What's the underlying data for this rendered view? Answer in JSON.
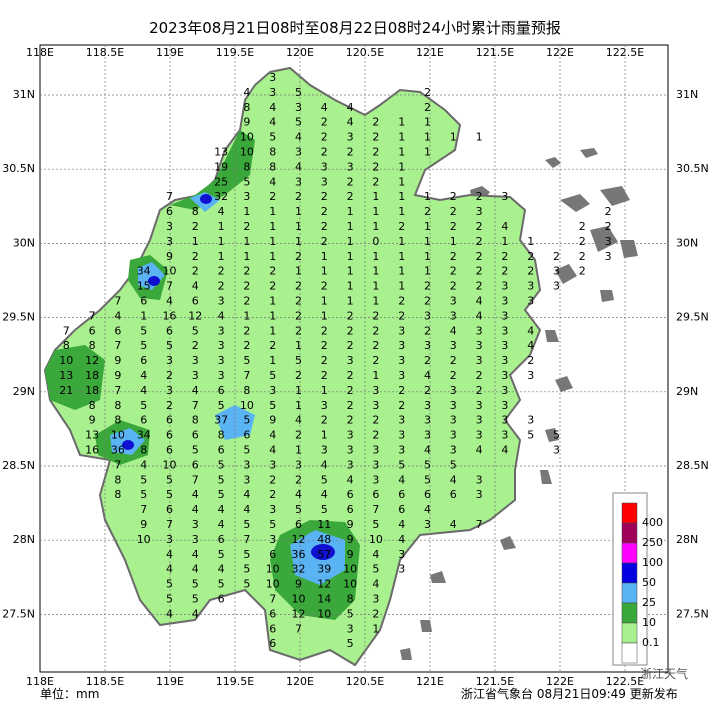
{
  "header": {
    "title": "2023年08月21日08时至08月22日08时24小时累计雨量预报"
  },
  "axes": {
    "lon_labels": [
      "118E",
      "118.5E",
      "119E",
      "119.5E",
      "120E",
      "120.5E",
      "121E",
      "121.5E",
      "122E",
      "122.5E"
    ],
    "lat_labels": [
      "31N",
      "30.5N",
      "30N",
      "29.5N",
      "29N",
      "28.5N",
      "28N",
      "27.5N"
    ]
  },
  "stations": {
    "rows": [
      [
        null,
        null,
        null,
        null,
        null,
        null,
        null,
        null,
        null,
        3
      ],
      [
        null,
        null,
        null,
        null,
        null,
        null,
        null,
        null,
        4,
        3,
        5,
        null,
        null,
        null,
        null,
        2
      ],
      [
        null,
        null,
        null,
        null,
        null,
        null,
        null,
        null,
        8,
        4,
        3,
        4,
        4,
        null,
        null,
        2
      ],
      [
        null,
        null,
        null,
        null,
        null,
        null,
        null,
        null,
        9,
        4,
        5,
        2,
        4,
        2,
        1,
        1
      ],
      [
        null,
        null,
        null,
        null,
        null,
        null,
        null,
        null,
        10,
        5,
        4,
        2,
        3,
        2,
        1,
        1,
        1,
        1
      ],
      [
        null,
        null,
        null,
        null,
        null,
        null,
        null,
        13,
        10,
        8,
        3,
        2,
        2,
        2,
        1,
        1
      ],
      [
        null,
        null,
        null,
        null,
        null,
        null,
        null,
        19,
        8,
        8,
        4,
        3,
        3,
        2,
        1
      ],
      [
        null,
        null,
        null,
        null,
        null,
        null,
        null,
        25,
        5,
        4,
        3,
        3,
        2,
        2,
        1
      ],
      [
        null,
        null,
        null,
        null,
        null,
        7,
        null,
        32,
        3,
        2,
        2,
        2,
        2,
        1,
        1,
        1,
        2,
        2,
        3
      ],
      [
        null,
        null,
        null,
        null,
        null,
        6,
        8,
        4,
        1,
        1,
        1,
        2,
        1,
        1,
        1,
        2,
        2,
        3,
        null,
        null,
        null,
        null,
        2
      ],
      [
        null,
        null,
        null,
        null,
        null,
        3,
        2,
        1,
        2,
        1,
        1,
        2,
        1,
        1,
        2,
        1,
        2,
        2,
        4,
        null,
        null,
        2,
        2
      ],
      [
        null,
        null,
        null,
        null,
        null,
        3,
        1,
        1,
        1,
        1,
        1,
        2,
        1,
        0,
        1,
        1,
        1,
        2,
        1,
        1,
        null,
        2,
        3
      ],
      [
        null,
        null,
        null,
        null,
        null,
        9,
        2,
        1,
        1,
        1,
        2,
        1,
        1,
        1,
        1,
        1,
        2,
        2,
        2,
        2,
        2,
        2,
        3
      ],
      [
        null,
        null,
        null,
        null,
        34,
        10,
        2,
        2,
        2,
        2,
        1,
        1,
        1,
        1,
        1,
        1,
        2,
        2,
        2,
        2,
        3,
        2
      ],
      [
        null,
        null,
        null,
        null,
        15,
        7,
        4,
        2,
        2,
        2,
        2,
        2,
        1,
        1,
        1,
        2,
        2,
        2,
        3,
        3,
        3
      ],
      [
        null,
        null,
        null,
        7,
        6,
        4,
        6,
        3,
        2,
        1,
        2,
        1,
        1,
        1,
        2,
        2,
        3,
        4,
        3,
        3
      ],
      [
        null,
        null,
        7,
        4,
        1,
        16,
        12,
        4,
        1,
        1,
        2,
        1,
        2,
        2,
        2,
        3,
        3,
        4,
        3
      ],
      [
        null,
        7,
        6,
        6,
        5,
        6,
        5,
        3,
        2,
        1,
        2,
        2,
        2,
        2,
        3,
        2,
        4,
        3,
        3,
        4
      ],
      [
        null,
        8,
        8,
        7,
        5,
        5,
        2,
        3,
        2,
        2,
        1,
        2,
        2,
        2,
        3,
        3,
        3,
        3,
        3,
        4
      ],
      [
        null,
        10,
        12,
        9,
        6,
        3,
        3,
        3,
        5,
        1,
        5,
        2,
        3,
        2,
        3,
        2,
        2,
        3,
        3,
        2
      ],
      [
        null,
        13,
        18,
        9,
        4,
        2,
        3,
        3,
        7,
        5,
        2,
        2,
        2,
        1,
        3,
        4,
        2,
        2,
        3,
        3
      ],
      [
        null,
        21,
        18,
        7,
        4,
        3,
        4,
        6,
        8,
        3,
        1,
        1,
        2,
        3,
        2,
        2,
        3,
        2,
        3
      ],
      [
        null,
        null,
        8,
        8,
        5,
        2,
        7,
        5,
        10,
        5,
        1,
        3,
        2,
        3,
        2,
        3,
        3,
        3,
        3
      ],
      [
        null,
        null,
        9,
        8,
        6,
        6,
        8,
        37,
        5,
        9,
        4,
        2,
        2,
        2,
        3,
        3,
        3,
        3,
        3,
        3
      ],
      [
        null,
        null,
        13,
        10,
        34,
        6,
        6,
        8,
        6,
        4,
        2,
        1,
        3,
        2,
        3,
        3,
        3,
        3,
        3,
        5,
        5
      ],
      [
        null,
        null,
        16,
        36,
        8,
        6,
        5,
        6,
        5,
        4,
        1,
        3,
        3,
        3,
        3,
        4,
        3,
        4,
        4,
        null,
        3
      ],
      [
        null,
        null,
        null,
        7,
        4,
        10,
        6,
        5,
        3,
        3,
        3,
        4,
        3,
        3,
        5,
        5,
        5
      ],
      [
        null,
        null,
        null,
        8,
        5,
        5,
        7,
        5,
        3,
        2,
        2,
        5,
        4,
        3,
        4,
        5,
        4,
        3
      ],
      [
        null,
        null,
        null,
        8,
        5,
        5,
        4,
        5,
        4,
        2,
        4,
        4,
        6,
        6,
        6,
        6,
        6,
        3
      ],
      [
        null,
        null,
        null,
        null,
        7,
        6,
        4,
        4,
        4,
        3,
        5,
        5,
        6,
        7,
        6,
        4
      ],
      [
        null,
        null,
        null,
        null,
        9,
        7,
        3,
        4,
        5,
        5,
        6,
        11,
        9,
        5,
        4,
        3,
        4,
        7
      ],
      [
        null,
        null,
        null,
        null,
        10,
        3,
        3,
        6,
        7,
        3,
        12,
        48,
        9,
        10,
        4
      ],
      [
        null,
        null,
        null,
        null,
        null,
        4,
        4,
        5,
        5,
        6,
        36,
        57,
        9,
        4,
        3
      ],
      [
        null,
        null,
        null,
        null,
        null,
        4,
        4,
        4,
        5,
        10,
        32,
        39,
        10,
        5,
        3
      ],
      [
        null,
        null,
        null,
        null,
        null,
        5,
        5,
        5,
        5,
        10,
        9,
        12,
        10,
        4
      ],
      [
        null,
        null,
        null,
        null,
        null,
        5,
        5,
        6,
        null,
        7,
        10,
        14,
        8,
        3
      ],
      [
        null,
        null,
        null,
        null,
        null,
        4,
        4,
        null,
        null,
        6,
        12,
        10,
        5,
        2
      ],
      [
        null,
        null,
        null,
        null,
        null,
        null,
        null,
        null,
        null,
        6,
        7,
        null,
        3,
        1
      ],
      [
        null,
        null,
        null,
        null,
        null,
        null,
        null,
        null,
        null,
        6,
        null,
        null,
        5
      ]
    ]
  },
  "legend": {
    "levels": [
      {
        "value": 400,
        "color": "#ff0000"
      },
      {
        "value": 250,
        "color": "#a0005a"
      },
      {
        "value": 100,
        "color": "#ff00ff"
      },
      {
        "value": 50,
        "color": "#0000e0"
      },
      {
        "value": 25,
        "color": "#5ab4f4"
      },
      {
        "value": 10,
        "color": "#3aa83a"
      },
      {
        "value": 0.1,
        "color": "#a9f08e"
      }
    ],
    "bottom_color": "#ffffff"
  },
  "footer": {
    "unit": "单位：mm",
    "issuer": "浙江省气象台 08月21日09:49 更新发布"
  },
  "watermark": "浙江天气"
}
